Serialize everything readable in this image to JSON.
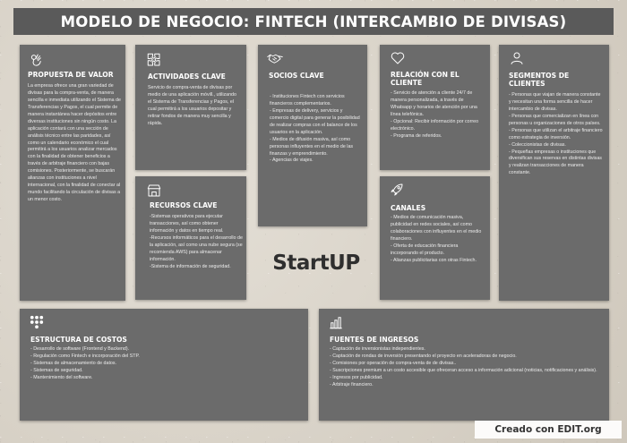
{
  "title": "MODELO DE NEGOCIO: FINTECH (INTERCAMBIO DE DIVISAS)",
  "propuesta": {
    "icon": "ok-hand-icon",
    "heading": "PROPUESTA DE VALOR",
    "text": "La empresa ofrece una gran variedad de divisas para la compra-venta, de manera sencilla e inmediata utilizando el Sistema de Transferencias y Pagos, el cual permite de manera instantánea hacer depósitos entre diversas instituciones sin ningún costo. La aplicación contará con una sección de análisis técnico entre las paridades, así como un calendario económico el cual permitirá a los usuarios analizar mercados con la finalidad de obtener beneficios a través de arbitraje financiero con bajas comisiones. Posteriormente, se buscarán alianzas con instituciones a nivel internacional, con la finalidad de conectar al mundo facilitando la circulación de divisas a un menor costo."
  },
  "actividades": {
    "icon": "puzzle-icon",
    "heading": "ACTIVIDADES CLAVE",
    "text": "Servicio de compra-venta de divisas por medio de una aplicación móvill., utilizando el Sistema de Transferencias y Pagos, el cual permitirá a los usuarios depositar y retirar fondos de manera muy sencilla y rápida."
  },
  "recursos": {
    "icon": "store-icon",
    "heading": "RECURSOS CLAVE",
    "items": [
      "-Sistemas operativos para ejecutar transacciones, así como obtener información y datos en tiempo real.",
      "-Recursos informáticos para el desarrollo de la aplicación, así como una nube segura (se recomienda AWS) para almacenar información.",
      "-Sistema de información de seguridad."
    ]
  },
  "socios": {
    "icon": "handshake-icon",
    "heading": "SOCIOS CLAVE",
    "items": [
      "- Instituciones Fintech con servicios financieros complementarios.",
      "- Empresas de delivery, servicios y comercio digital para generar la posibilidad de realizar compras con el balance de los usuarios en la aplicación.",
      "- Medios de difusión masiva, así como personas influyentes en el medio de las finanzas y emprendimiento.",
      "- Agencias de viajes."
    ]
  },
  "relacion": {
    "icon": "heart-icon",
    "heading": "RELACIÓN CON EL CLIENTE",
    "items": [
      "- Servicio de atención a cliente 24/7 de manera personalizada, a través de Whatsapp y horarios de atención por una línea telefónica.",
      "- Opcional: Recibir información por correo electrónico.",
      "- Programa de referidos."
    ]
  },
  "canales": {
    "icon": "rocket-icon",
    "heading": "CANALES",
    "items": [
      "- Medios de comunicación masiva, publicidad en redes sociales, así como colaboraciones con influyentes en el medio financiero.",
      "- Oferta de educación financiera incorporando el producto.",
      "- Alianzas publicitarias con otras Fintech."
    ]
  },
  "segmentos": {
    "icon": "user-icon",
    "heading": "SEGMENTOS DE CLIENTES",
    "items": [
      "- Personas que viajan de manera constante y necesitan una forma sencilla de hacer intercambio de divisas.",
      "- Personas que comercializan en línea con personas u organizaciones de otros países.",
      "- Personas que utilizan el arbitraje financiero como estrategia de inversión.",
      "- Coleccionistas de divisas.",
      "- Pequeñas empresas o instituciones que diversifican sus reservas en distintas divisas y realizan transacciones de manera constante."
    ]
  },
  "estructura": {
    "icon": "network-icon",
    "heading": "ESTRUCTURA DE COSTOS",
    "items": [
      "- Desarrollo de software (Frontend y Backend).",
      "- Regulación como Fintech e incorporación del STP.",
      "- Sistemas de almacenamiento de datos.",
      "- Sistemas de seguridad.",
      "- Mantenimiento del software."
    ]
  },
  "fuentes": {
    "icon": "bar-chart-icon",
    "heading": "FUENTES DE INGRESOS",
    "items": [
      "- Captación de inversionistas independientes.",
      "- Captación de rondas de inversión presentando el proyecto en aceleradoras de negocio.",
      "- Comisiones por operación de compra-venta de de divisas..",
      "- Suscripciones premium a un costo accesible que ofreceran acceso a información adicional (noticias, notificaciones y análisis).",
      "- Ingresos por publicidad.",
      "- Arbitraje financiero."
    ]
  },
  "logo": "StartUP",
  "watermark": "Creado con EDIT.org"
}
